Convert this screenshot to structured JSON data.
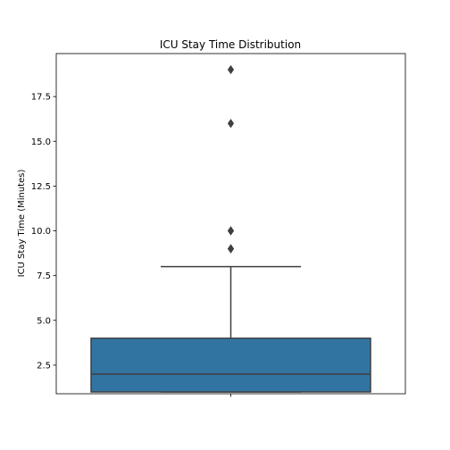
{
  "chart_data": {
    "type": "box",
    "title": "ICU Stay Time Distribution",
    "xlabel": "",
    "ylabel": "ICU Stay Time (Minutes)",
    "ylim": [
      0.9,
      19.9
    ],
    "yticks": [
      2.5,
      5.0,
      7.5,
      10.0,
      12.5,
      15.0,
      17.5
    ],
    "ytick_labels": [
      "2.5",
      "5.0",
      "7.5",
      "10.0",
      "12.5",
      "15.0",
      "17.5"
    ],
    "box": {
      "min": 1,
      "q1": 1,
      "median": 2,
      "q3": 4,
      "whisker_low": 1,
      "whisker_high": 8
    },
    "outliers": [
      9,
      9,
      10,
      10,
      16,
      19
    ],
    "grid": false,
    "legend": "none",
    "colors": {
      "box_fill": "#3274a1",
      "box_edge": "#3f3f3f",
      "outlier": "#3f3f3f"
    }
  }
}
